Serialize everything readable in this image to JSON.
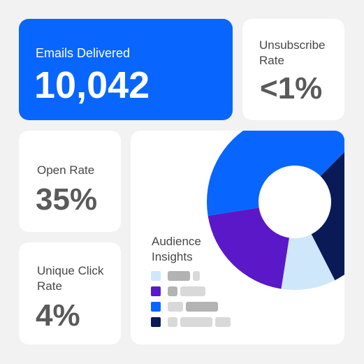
{
  "cards": {
    "emails_delivered": {
      "label": "Emails Delivered",
      "value": "10,042"
    },
    "unsubscribe_rate": {
      "label": "Unsubscribe Rate",
      "value": "<1%"
    },
    "open_rate": {
      "label": "Open Rate",
      "value": "35%"
    },
    "unique_click_rate": {
      "label": "Unique Click Rate",
      "value": "4%"
    },
    "audience_insights": {
      "label": "Audience Insights"
    }
  },
  "colors": {
    "background": "#f2f2f2",
    "card": "#ffffff",
    "primary": "#0866ff",
    "purple": "#5a18c8",
    "light_blue": "#cfe7fb",
    "navy": "#0a1a57",
    "placeholder_light": "#d9d9d9",
    "placeholder_dark": "#b3b3b3"
  },
  "chart_data": {
    "type": "pie",
    "title": "",
    "series": [
      {
        "color": "#0866ff",
        "value": 40
      },
      {
        "color": "#0a1a57",
        "value": 30
      },
      {
        "color": "#cfe7fb",
        "value": 10
      },
      {
        "color": "#5a18c8",
        "value": 20
      }
    ]
  }
}
